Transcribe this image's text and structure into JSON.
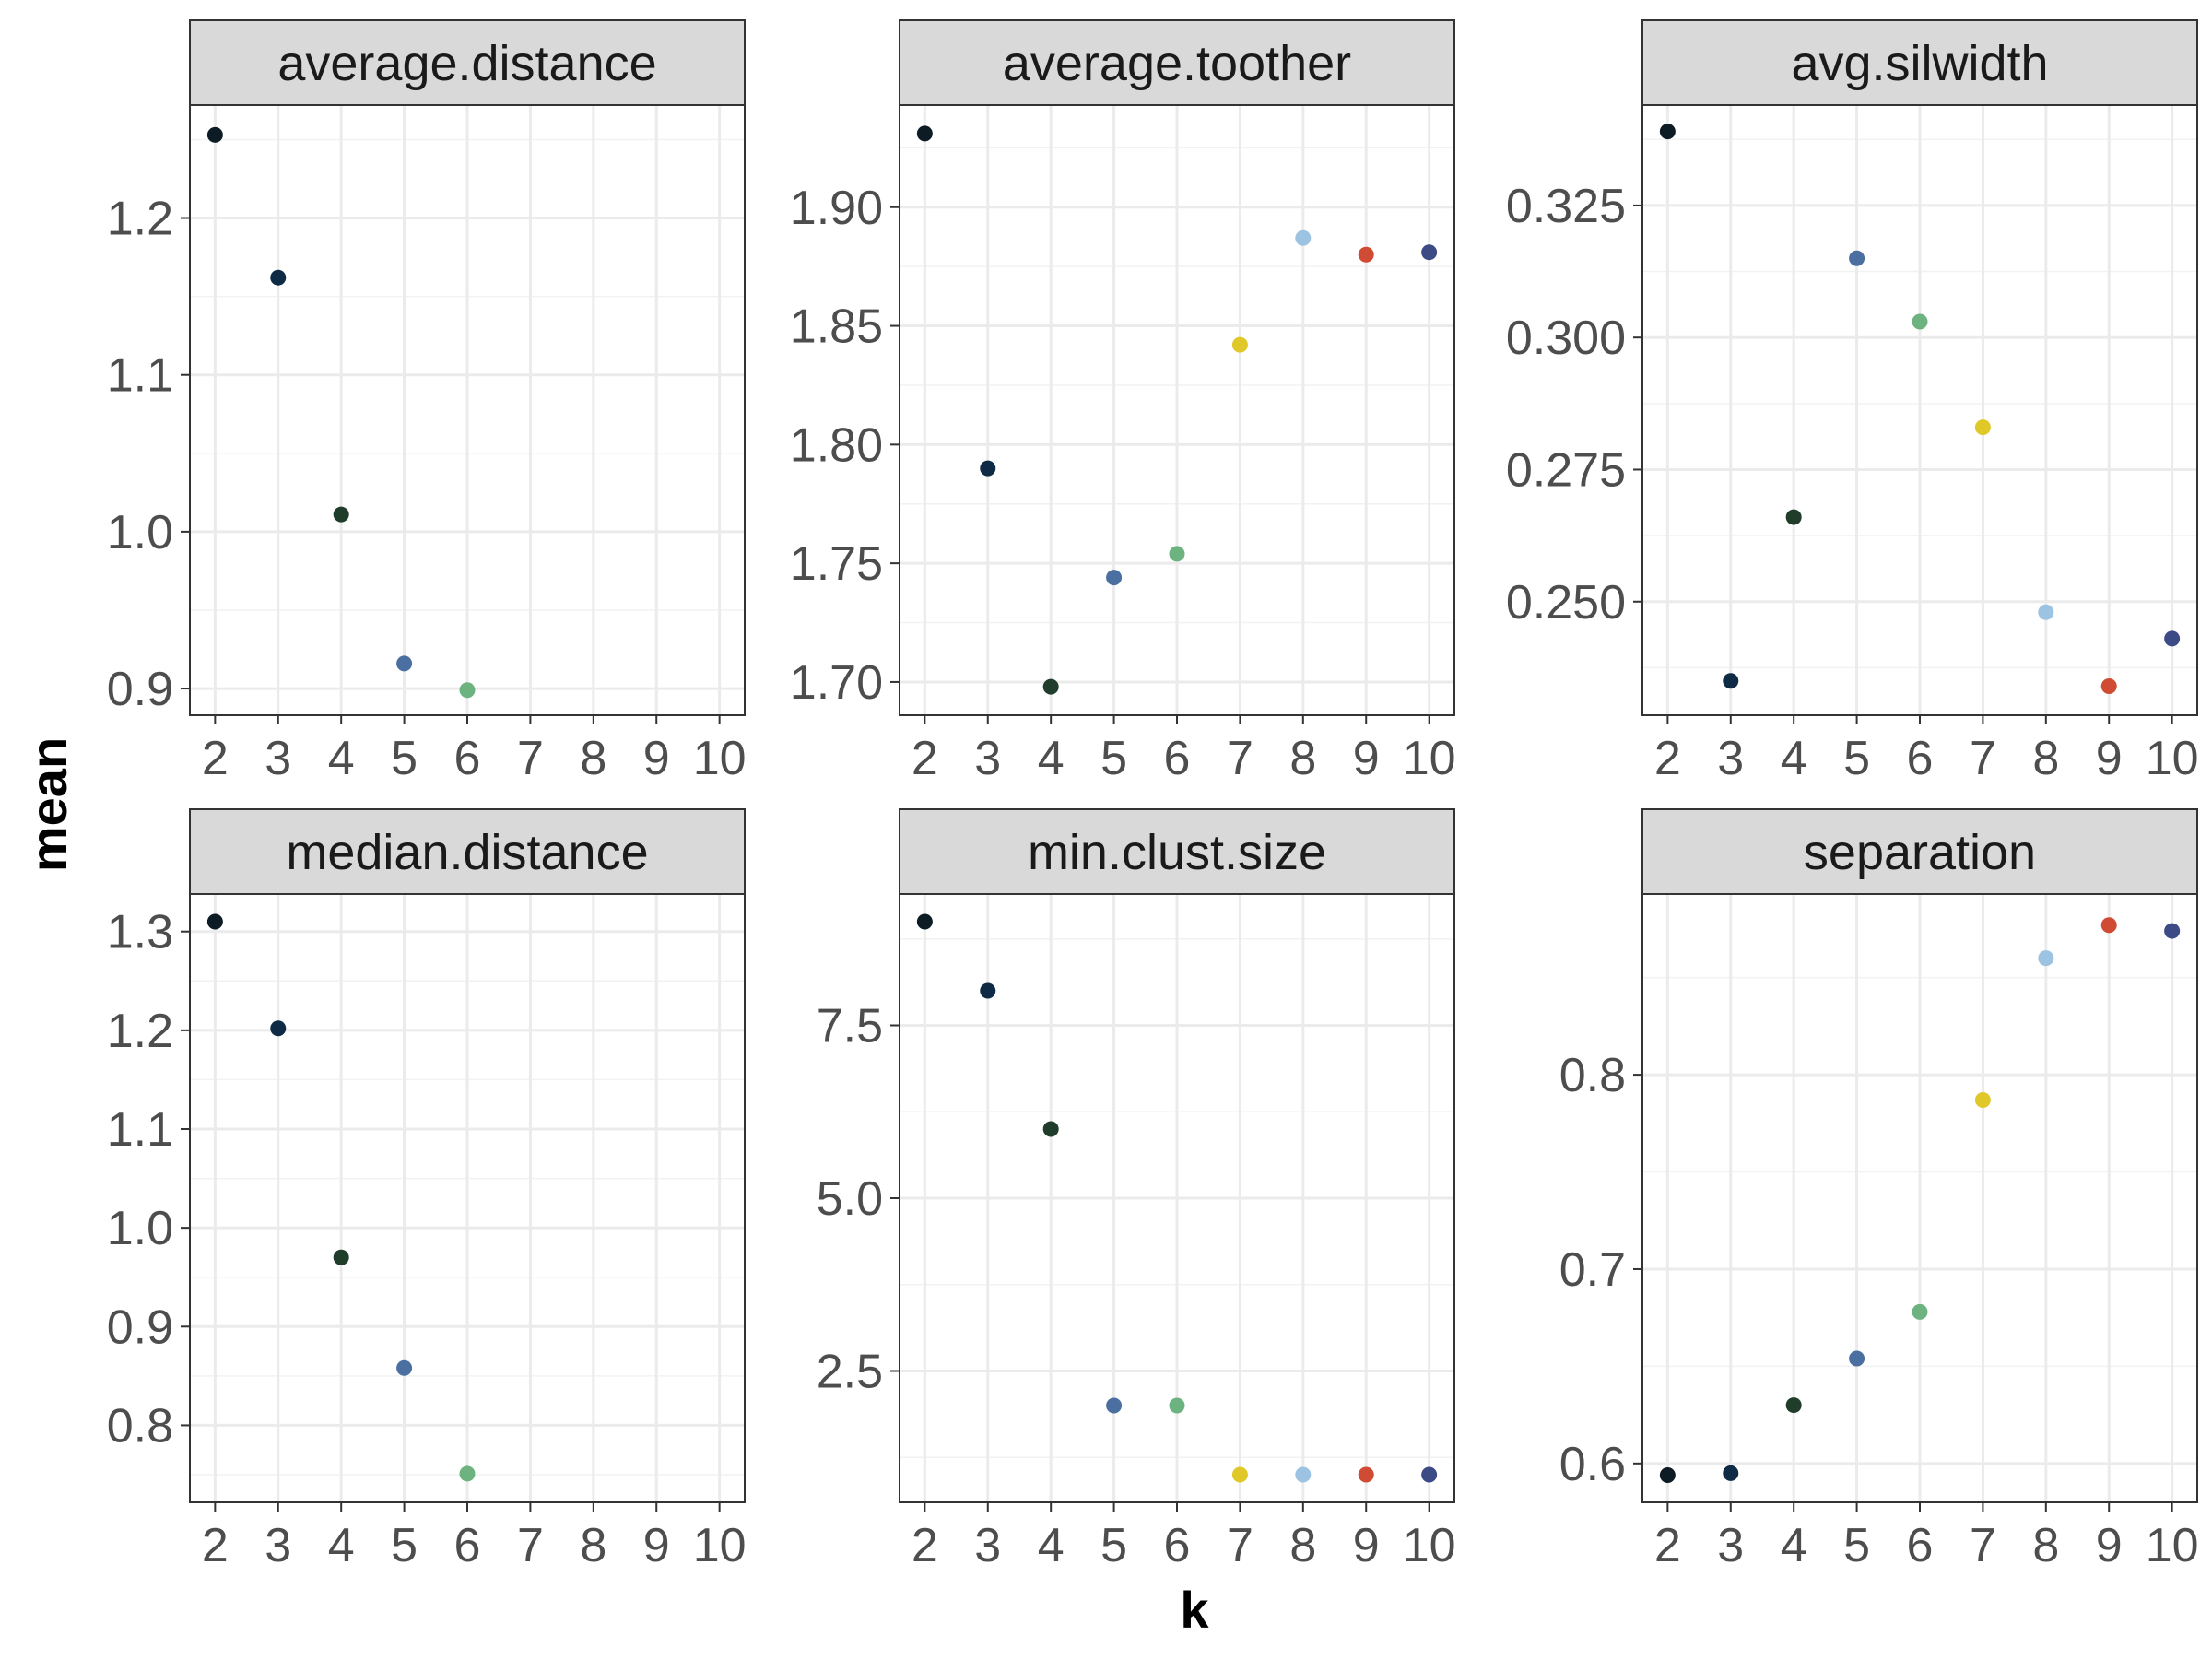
{
  "chart_data": {
    "type": "scatter",
    "xlabel": "k",
    "ylabel": "mean",
    "x_ticks": [
      2,
      3,
      4,
      5,
      6,
      7,
      8,
      9,
      10
    ],
    "xlim": [
      1.6,
      10.4
    ],
    "colors": {
      "2": "#0d1b24",
      "3": "#0f2a44",
      "4": "#1f3d2a",
      "5": "#4a6fa0",
      "6": "#6db37f",
      "7": "#e0c829",
      "8": "#9dc3e3",
      "9": "#d04b33",
      "10": "#3c4a86"
    },
    "panels": [
      {
        "title": "average.distance",
        "ylim": [
          0.883,
          1.272
        ],
        "yticks": [
          0.9,
          1.0,
          1.1,
          1.2
        ],
        "ytick_labels": [
          "0.9",
          "1.0",
          "1.1",
          "1.2"
        ],
        "points": [
          {
            "k": 2,
            "value": 1.253
          },
          {
            "k": 3,
            "value": 1.162
          },
          {
            "k": 4,
            "value": 1.011
          },
          {
            "k": 5,
            "value": 0.916
          },
          {
            "k": 6,
            "value": 0.899
          }
        ]
      },
      {
        "title": "average.toother",
        "ylim": [
          1.686,
          1.943
        ],
        "yticks": [
          1.7,
          1.75,
          1.8,
          1.85,
          1.9
        ],
        "ytick_labels": [
          "1.70",
          "1.75",
          "1.80",
          "1.85",
          "1.90"
        ],
        "points": [
          {
            "k": 2,
            "value": 1.931
          },
          {
            "k": 3,
            "value": 1.79
          },
          {
            "k": 4,
            "value": 1.698
          },
          {
            "k": 5,
            "value": 1.744
          },
          {
            "k": 6,
            "value": 1.754
          },
          {
            "k": 7,
            "value": 1.842
          },
          {
            "k": 8,
            "value": 1.887
          },
          {
            "k": 9,
            "value": 1.88
          },
          {
            "k": 10,
            "value": 1.881
          }
        ]
      },
      {
        "title": "avg.silwidth",
        "ylim": [
          0.2285,
          0.344
        ],
        "yticks": [
          0.25,
          0.275,
          0.3,
          0.325
        ],
        "ytick_labels": [
          "0.250",
          "0.275",
          "0.300",
          "0.325"
        ],
        "points": [
          {
            "k": 2,
            "value": 0.339
          },
          {
            "k": 3,
            "value": 0.235
          },
          {
            "k": 4,
            "value": 0.266
          },
          {
            "k": 5,
            "value": 0.315
          },
          {
            "k": 6,
            "value": 0.303
          },
          {
            "k": 7,
            "value": 0.283
          },
          {
            "k": 8,
            "value": 0.248
          },
          {
            "k": 9,
            "value": 0.234
          },
          {
            "k": 10,
            "value": 0.243
          }
        ]
      },
      {
        "title": "median.distance",
        "ylim": [
          0.722,
          1.338
        ],
        "yticks": [
          0.8,
          0.9,
          1.0,
          1.1,
          1.2,
          1.3
        ],
        "ytick_labels": [
          "0.8",
          "0.9",
          "1.0",
          "1.1",
          "1.2",
          "1.3"
        ],
        "points": [
          {
            "k": 2,
            "value": 1.31
          },
          {
            "k": 3,
            "value": 1.202
          },
          {
            "k": 4,
            "value": 0.97
          },
          {
            "k": 5,
            "value": 0.858
          },
          {
            "k": 6,
            "value": 0.751
          }
        ]
      },
      {
        "title": "min.clust.size",
        "ylim": [
          0.6,
          9.4
        ],
        "yticks": [
          2.5,
          5.0,
          7.5
        ],
        "ytick_labels": [
          "2.5",
          "5.0",
          "7.5"
        ],
        "points": [
          {
            "k": 2,
            "value": 9
          },
          {
            "k": 3,
            "value": 8
          },
          {
            "k": 4,
            "value": 6
          },
          {
            "k": 5,
            "value": 2
          },
          {
            "k": 6,
            "value": 2
          },
          {
            "k": 7,
            "value": 1
          },
          {
            "k": 8,
            "value": 1
          },
          {
            "k": 9,
            "value": 1
          },
          {
            "k": 10,
            "value": 1
          }
        ]
      },
      {
        "title": "separation",
        "ylim": [
          0.58,
          0.893
        ],
        "yticks": [
          0.6,
          0.7,
          0.8
        ],
        "ytick_labels": [
          "0.6",
          "0.7",
          "0.8"
        ],
        "points": [
          {
            "k": 2,
            "value": 0.594
          },
          {
            "k": 3,
            "value": 0.595
          },
          {
            "k": 4,
            "value": 0.63
          },
          {
            "k": 5,
            "value": 0.654
          },
          {
            "k": 6,
            "value": 0.678
          },
          {
            "k": 7,
            "value": 0.787
          },
          {
            "k": 8,
            "value": 0.86
          },
          {
            "k": 9,
            "value": 0.877
          },
          {
            "k": 10,
            "value": 0.874
          }
        ]
      }
    ]
  }
}
